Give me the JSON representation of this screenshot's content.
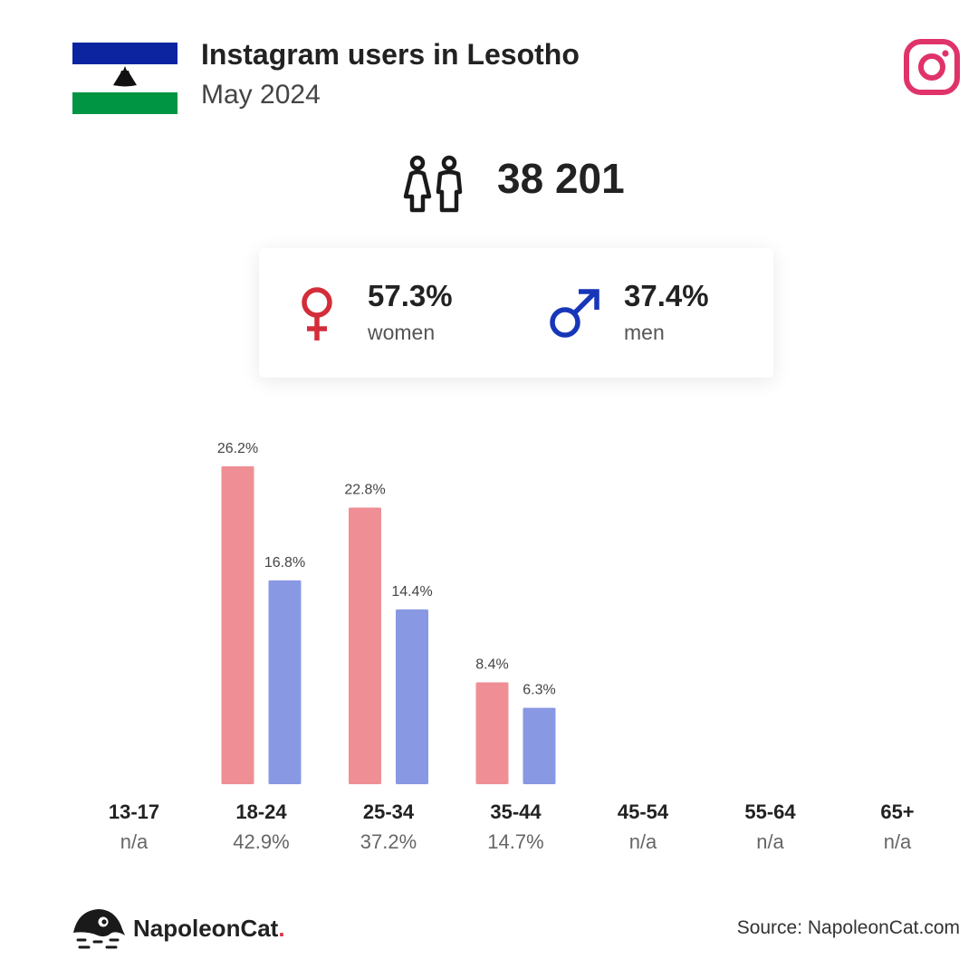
{
  "header": {
    "title": "Instagram users in Lesotho",
    "subtitle": "May 2024"
  },
  "total_users": "38 201",
  "gender": {
    "women_pct": "57.3%",
    "women_label": "women",
    "men_pct": "37.4%",
    "men_label": "men"
  },
  "colors": {
    "women_bar": "#ef8f95",
    "men_bar": "#8998e3",
    "female_symbol": "#d42d3a",
    "male_symbol": "#1737b8",
    "instagram": "#e0336a",
    "flag_blue": "#0d24a0",
    "flag_green": "#009543"
  },
  "chart_data": {
    "type": "bar",
    "categories": [
      "13-17",
      "18-24",
      "25-34",
      "35-44",
      "45-54",
      "55-64",
      "65+"
    ],
    "category_totals": [
      "n/a",
      "42.9%",
      "37.2%",
      "14.7%",
      "n/a",
      "n/a",
      "n/a"
    ],
    "series": [
      {
        "values": [
          null,
          26.2,
          22.8,
          8.4,
          null,
          null,
          null
        ],
        "labels": [
          "",
          "26.2%",
          "22.8%",
          "8.4%",
          "",
          "",
          ""
        ]
      },
      {
        "values": [
          null,
          16.8,
          14.4,
          6.3,
          null,
          null,
          null
        ],
        "labels": [
          "",
          "16.8%",
          "14.4%",
          "6.3%",
          "",
          "",
          ""
        ]
      }
    ],
    "ylim": [
      0,
      30
    ],
    "grid": false
  },
  "footer": {
    "brand": "NapoleonCat",
    "brand_dot": ".",
    "source": "Source: NapoleonCat.com"
  }
}
